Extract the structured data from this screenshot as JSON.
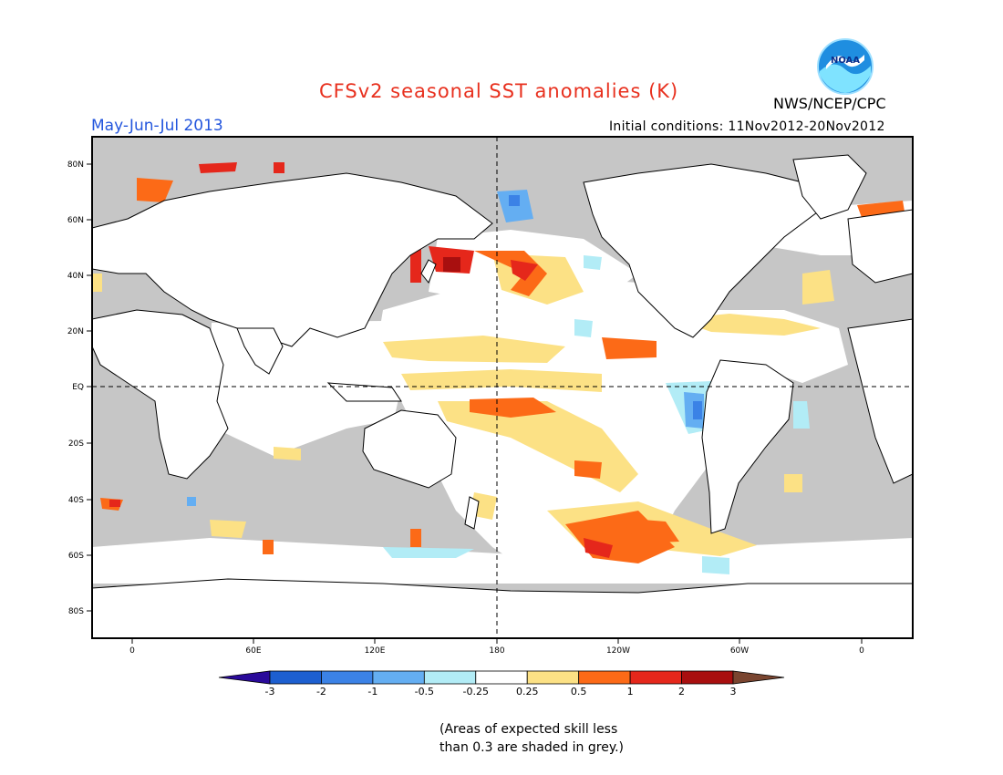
{
  "header": {
    "title": "CFSv2 seasonal SST anomalies (K)",
    "season": "May-Jun-Jul 2013",
    "initial_conditions": "Initial conditions: 11Nov2012-20Nov2012",
    "agency": "NWS/NCEP/CPC",
    "logo_text": "NOAA"
  },
  "map": {
    "lat_labels": [
      "80N",
      "60N",
      "40N",
      "20N",
      "EQ",
      "20S",
      "40S",
      "60S",
      "80S"
    ],
    "lon_labels": [
      "0",
      "60E",
      "120E",
      "180",
      "120W",
      "60W",
      "0"
    ],
    "grey_meaning": "skill < 0.3"
  },
  "colorbar": {
    "labels": [
      "-3",
      "-2",
      "-1",
      "-0.5",
      "-0.25",
      "0.25",
      "0.5",
      "1",
      "2",
      "3"
    ],
    "colors": [
      "#2a0a9a",
      "#1d5fd0",
      "#3b82e6",
      "#64aef2",
      "#b2ecf6",
      "#ffffff",
      "#fce185",
      "#fc6a17",
      "#e5271b",
      "#a80f0f",
      "#7a4530"
    ]
  },
  "colors": {
    "ocean_unskilled": "#c6c6c6",
    "land": "#ffffff",
    "neutral_skilled": "#ffffff"
  },
  "footer": {
    "note_line1": "(Areas of expected skill less",
    "note_line2": "than 0.3 are shaded in grey.)"
  }
}
